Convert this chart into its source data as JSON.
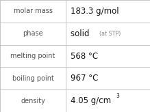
{
  "rows": [
    {
      "label": "molar mass",
      "value": "183.3 g/mol",
      "annotation": null,
      "superscript": null
    },
    {
      "label": "phase",
      "value": "solid",
      "annotation": "(at STP)",
      "superscript": null
    },
    {
      "label": "melting point",
      "value": "568 °C",
      "annotation": null,
      "superscript": null
    },
    {
      "label": "boiling point",
      "value": "967 °C",
      "annotation": null,
      "superscript": null
    },
    {
      "label": "density",
      "value": "4.05 g/cm",
      "annotation": null,
      "superscript": "3"
    }
  ],
  "bg_color": "#ffffff",
  "border_color": "#bbbbbb",
  "label_color": "#505050",
  "value_color": "#111111",
  "annotation_color": "#888888",
  "col_split": 0.44,
  "label_fontsize": 7.0,
  "value_fontsize": 8.5,
  "annotation_fontsize": 5.8,
  "superscript_fontsize": 5.5
}
